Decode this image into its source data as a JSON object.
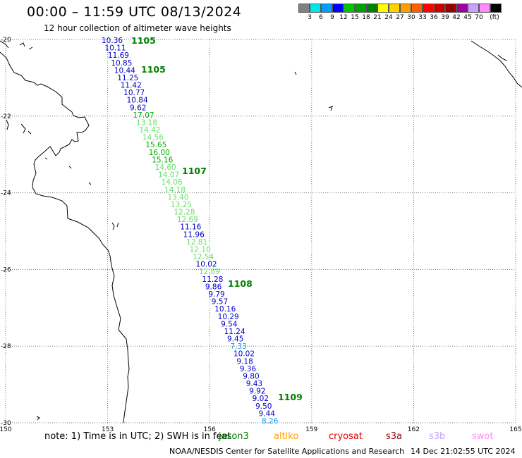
{
  "header": {
    "title": "00:00 – 11:59 UTC 08/13/2024",
    "subtitle": "12 hour collection of altimeter wave heights"
  },
  "legend": {
    "colors": [
      "#808080",
      "#00e5e5",
      "#00a0ff",
      "#0000ff",
      "#00c800",
      "#00a000",
      "#008000",
      "#ffff00",
      "#ffd200",
      "#ffa000",
      "#ff6000",
      "#ff0000",
      "#c80000",
      "#960000",
      "#a000a0",
      "#c8a0ff",
      "#ff8cff",
      "#000000"
    ],
    "ticks": [
      "3",
      "6",
      "9",
      "12",
      "15",
      "18",
      "21",
      "24",
      "27",
      "30",
      "33",
      "36",
      "39",
      "42",
      "45",
      "70",
      "(ft)"
    ]
  },
  "map": {
    "lon_ticks": [
      "150",
      "153",
      "156",
      "159",
      "162",
      "165"
    ],
    "lat_ticks": [
      "-20",
      "-22",
      "-24",
      "-26",
      "-28",
      "-30"
    ],
    "track": [
      {
        "v": "10.36",
        "c": "#0000c8"
      },
      {
        "v": "10.11",
        "c": "#0000c8"
      },
      {
        "v": "11.69",
        "c": "#0000c8"
      },
      {
        "v": "10.85",
        "c": "#0000c8"
      },
      {
        "v": "10.44",
        "c": "#0000c8"
      },
      {
        "v": "11.25",
        "c": "#0000c8"
      },
      {
        "v": "11.42",
        "c": "#0000c8"
      },
      {
        "v": "10.77",
        "c": "#0000c8"
      },
      {
        "v": "10.84",
        "c": "#0000c8"
      },
      {
        "v": "9.62",
        "c": "#0000c8"
      },
      {
        "v": "17.07",
        "c": "#00b000"
      },
      {
        "v": "13.18",
        "c": "#66e066"
      },
      {
        "v": "14.42",
        "c": "#66e066"
      },
      {
        "v": "14.56",
        "c": "#66e066"
      },
      {
        "v": "15.65",
        "c": "#00b000"
      },
      {
        "v": "16.00",
        "c": "#00b000"
      },
      {
        "v": "15.16",
        "c": "#00b000"
      },
      {
        "v": "14.60",
        "c": "#66e066"
      },
      {
        "v": "14.07",
        "c": "#66e066"
      },
      {
        "v": "14.06",
        "c": "#66e066"
      },
      {
        "v": "14.18",
        "c": "#66e066"
      },
      {
        "v": "13.40",
        "c": "#66e066"
      },
      {
        "v": "13.25",
        "c": "#66e066"
      },
      {
        "v": "12.28",
        "c": "#66e066"
      },
      {
        "v": "12.69",
        "c": "#66e066"
      },
      {
        "v": "11.16",
        "c": "#0000c8"
      },
      {
        "v": "11.96",
        "c": "#0000c8"
      },
      {
        "v": "12.81",
        "c": "#66e066"
      },
      {
        "v": "12.10",
        "c": "#66e066"
      },
      {
        "v": "12.54",
        "c": "#66e066"
      },
      {
        "v": "10.02",
        "c": "#0000c8"
      },
      {
        "v": "12.89",
        "c": "#66e066"
      },
      {
        "v": "11.28",
        "c": "#0000c8"
      },
      {
        "v": "9.86",
        "c": "#0000c8"
      },
      {
        "v": "9.79",
        "c": "#0000c8"
      },
      {
        "v": "9.57",
        "c": "#0000c8"
      },
      {
        "v": "10.16",
        "c": "#0000c8"
      },
      {
        "v": "10.29",
        "c": "#0000c8"
      },
      {
        "v": "9.54",
        "c": "#0000c8"
      },
      {
        "v": "11.24",
        "c": "#0000c8"
      },
      {
        "v": "9.45",
        "c": "#0000c8"
      },
      {
        "v": "7.33",
        "c": "#00a0ff"
      },
      {
        "v": "10.02",
        "c": "#0000c8"
      },
      {
        "v": "9.18",
        "c": "#0000c8"
      },
      {
        "v": "9.36",
        "c": "#0000c8"
      },
      {
        "v": "9.80",
        "c": "#0000c8"
      },
      {
        "v": "9.43",
        "c": "#0000c8"
      },
      {
        "v": "9.92",
        "c": "#0000c8"
      },
      {
        "v": "9.02",
        "c": "#0000c8"
      },
      {
        "v": "9.50",
        "c": "#0000c8"
      },
      {
        "v": "9.44",
        "c": "#0000c8"
      },
      {
        "v": "8.26",
        "c": "#00a0ff"
      }
    ],
    "time_labels": [
      "1105",
      "1105",
      "1107",
      "1108",
      "1109"
    ],
    "time_color": "#008000"
  },
  "footer": {
    "note": "note: 1) Time is in UTC; 2) SWH is in feet",
    "satellites": [
      {
        "name": "jason3",
        "color": "#008000"
      },
      {
        "name": "altiko",
        "color": "#ffa000"
      },
      {
        "name": "cryosat",
        "color": "#e00000"
      },
      {
        "name": "s3a",
        "color": "#960000"
      },
      {
        "name": "s3b",
        "color": "#c8a0ff"
      },
      {
        "name": "swot",
        "color": "#ff8cff"
      }
    ],
    "credit": "NOAA/NESDIS Center for Satellite Applications and Research",
    "timestamp": "14 Dec 21:02:55 UTC 2024"
  }
}
